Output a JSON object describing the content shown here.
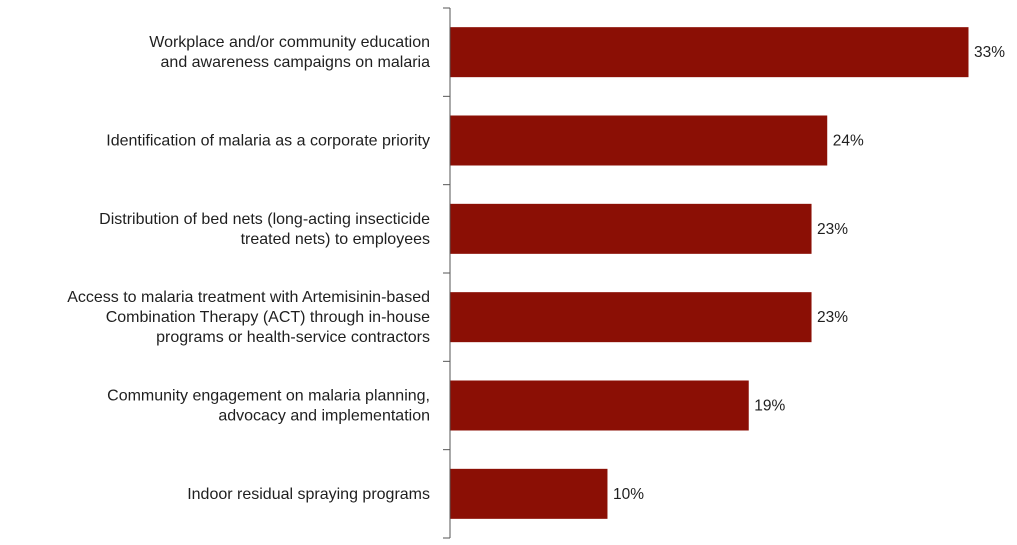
{
  "chart_data": {
    "type": "bar",
    "orientation": "horizontal",
    "title": "",
    "xlabel": "",
    "ylabel": "",
    "categories": [
      [
        "Workplace and/or community education",
        "and awareness campaigns on malaria"
      ],
      [
        "Identification of malaria as a corporate priority"
      ],
      [
        "Distribution of bed nets (long-acting insecticide",
        "treated nets) to employees"
      ],
      [
        "Access to malaria treatment with Artemisinin-based",
        "Combination Therapy (ACT) through in-house",
        "programs or health-service contractors"
      ],
      [
        "Community engagement on malaria planning,",
        "advocacy and implementation"
      ],
      [
        "Indoor residual spraying programs"
      ]
    ],
    "values": [
      33,
      24,
      23,
      23,
      19,
      10
    ],
    "value_labels": [
      "33%",
      "24%",
      "23%",
      "23%",
      "19%",
      "10%"
    ],
    "xlim": [
      0,
      33
    ],
    "grid": false,
    "legend": "none",
    "bar_color": "#8b0f05",
    "axis_color": "#555555"
  }
}
